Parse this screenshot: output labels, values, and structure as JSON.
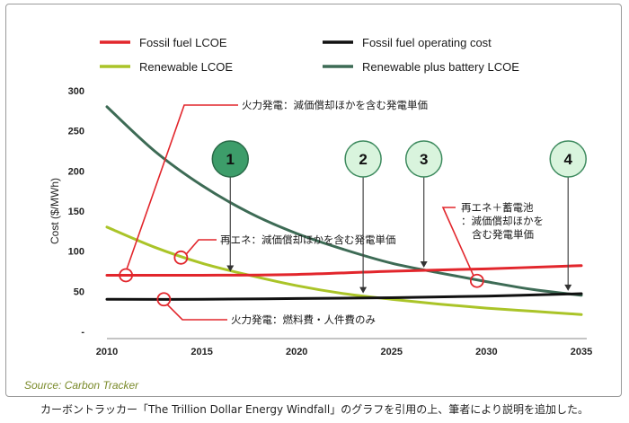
{
  "chart_data": {
    "type": "line",
    "xlim": [
      2010,
      2035
    ],
    "ylim": [
      0,
      300
    ],
    "x_ticks": [
      2010,
      2015,
      2020,
      2025,
      2030,
      2035
    ],
    "y_ticks": [
      0,
      50,
      100,
      150,
      200,
      250,
      300
    ],
    "x_tick_labels": [
      "2010",
      "2015",
      "2020",
      "2025",
      "2030",
      "2035"
    ],
    "y_tick_labels": [
      "-",
      "50",
      "100",
      "150",
      "200",
      "250",
      "300"
    ],
    "xlabel": "",
    "ylabel": "Cost ($/MWh)",
    "legend_position": "top",
    "series": [
      {
        "id": "fossil-lcoe",
        "name": "Fossil fuel LCOE",
        "color": "#e2262c",
        "x": [
          2010,
          2015,
          2020,
          2025,
          2030,
          2035
        ],
        "y": [
          70,
          70,
          71,
          75,
          78,
          82
        ]
      },
      {
        "id": "fossil-opcost",
        "name": "Fossil fuel operating cost",
        "color": "#111111",
        "x": [
          2010,
          2015,
          2020,
          2025,
          2030,
          2035
        ],
        "y": [
          40,
          40,
          41,
          42,
          44,
          47
        ]
      },
      {
        "id": "renewable-lcoe",
        "name": "Renewable LCOE",
        "color": "#aac428",
        "x": [
          2010,
          2012.5,
          2015,
          2017.5,
          2020,
          2022.5,
          2025,
          2027.5,
          2030,
          2032.5,
          2035
        ],
        "y": [
          130,
          105,
          85,
          70,
          57,
          47,
          40,
          34,
          29,
          25,
          21
        ]
      },
      {
        "id": "renewable-battery",
        "name": "Renewable plus battery LCOE",
        "color": "#3d6b55",
        "x": [
          2010,
          2012.5,
          2015,
          2017.5,
          2020,
          2022.5,
          2025,
          2027.5,
          2030,
          2032.5,
          2035
        ],
        "y": [
          280,
          225,
          182,
          148,
          122,
          102,
          85,
          73,
          62,
          52,
          45
        ]
      }
    ],
    "markers": [
      {
        "label": "1",
        "x": 2016.5,
        "y": 70,
        "dark": true
      },
      {
        "label": "2",
        "x": 2023.5,
        "y": 43,
        "dark": false
      },
      {
        "label": "3",
        "x": 2026.7,
        "y": 75,
        "dark": false
      },
      {
        "label": "4",
        "x": 2034.3,
        "y": 46,
        "dark": false
      }
    ],
    "annotations": [
      {
        "id": "fossil-lcoe-note",
        "text": "火力発電：減価償却ほかを含む発電単価",
        "point": [
          2011,
          70
        ]
      },
      {
        "id": "renewable-lcoe-note",
        "text": "再エネ：減価償却ほかを含む発電単価",
        "point": [
          2013.9,
          92
        ]
      },
      {
        "id": "fossil-opcost-note",
        "text": "火力発電：燃料費・人件費のみ",
        "point": [
          2013,
          40
        ]
      },
      {
        "id": "battery-note",
        "lines": [
          "再エネ＋蓄電池",
          "：減価償却ほかを",
          "含む発電単価"
        ],
        "point": [
          2029.5,
          63
        ]
      }
    ]
  },
  "source": "Source:  Carbon Tracker",
  "caption": "カーボントラッカー「The Trillion Dollar Energy Windfall」のグラフを引用の上、筆者により説明を追加した。"
}
